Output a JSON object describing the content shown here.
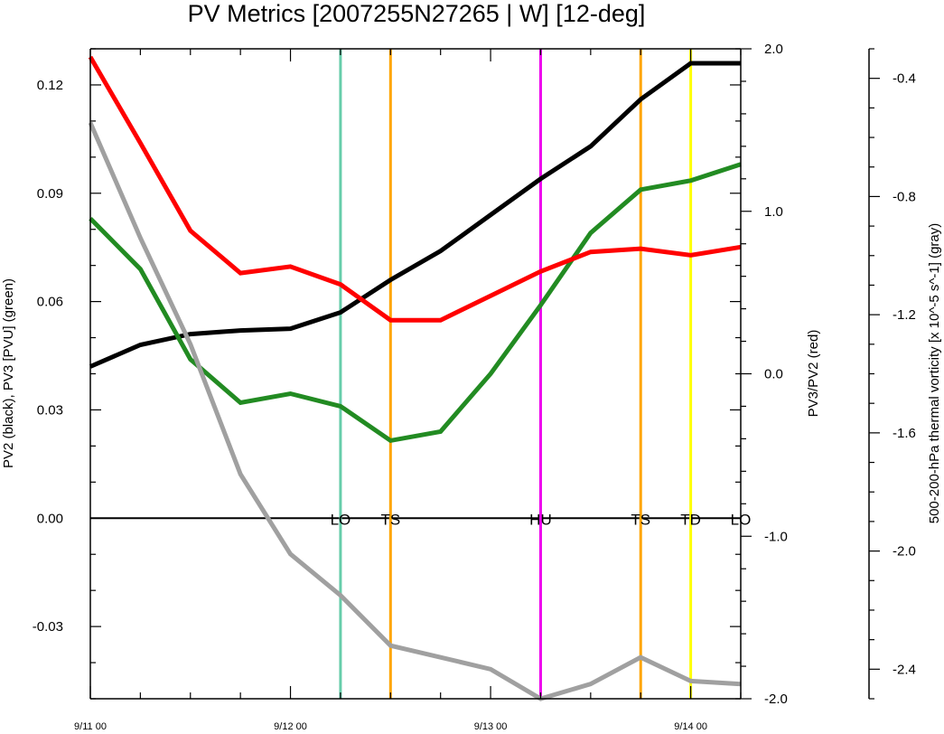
{
  "chart_data": {
    "type": "line",
    "title": "PV Metrics [2007255N27265 | W] [12-deg]",
    "x_tick_labels": [
      "9/11 00",
      "9/12 00",
      "9/13 00",
      "9/14 00"
    ],
    "x_hours": [
      0,
      6,
      12,
      18,
      24,
      30,
      36,
      42,
      48,
      54,
      60,
      66,
      72,
      78
    ],
    "axes": {
      "left": {
        "label": "PV2 (black), PV3 [PVU] (green)",
        "ylim": [
          -0.05,
          0.13
        ],
        "tick_values": [
          -0.03,
          0.0,
          0.03,
          0.06,
          0.09,
          0.12
        ],
        "tick_labels": [
          "-0.03",
          "0.00",
          "0.03",
          "0.06",
          "0.09",
          "0.12"
        ]
      },
      "right1": {
        "label": "PV3/PV2 (red)",
        "ylim": [
          -2.0,
          2.0
        ],
        "tick_values": [
          -2.0,
          -1.0,
          0.0,
          1.0,
          2.0
        ],
        "tick_labels": [
          "-2.0",
          "-1.0",
          "0.0",
          "1.0",
          "2.0"
        ]
      },
      "right2": {
        "label": "500-200-hPa thermal vorticity [x 10^-5 s^-1] (gray)",
        "ylim": [
          -2.5,
          -0.3
        ],
        "tick_values": [
          -2.4,
          -2.0,
          -1.6,
          -1.2,
          -0.8,
          -0.4
        ],
        "tick_labels": [
          "-2.4",
          "-2.0",
          "-1.6",
          "-1.2",
          "-0.8",
          "-0.4"
        ]
      }
    },
    "series": [
      {
        "name": "PV2",
        "axis": "left",
        "color": "#000000",
        "values": [
          0.042,
          0.048,
          0.051,
          0.052,
          0.0525,
          0.057,
          0.066,
          0.074,
          0.084,
          0.094,
          0.103,
          0.116,
          0.126,
          0.126
        ]
      },
      {
        "name": "PV3",
        "axis": "left",
        "color": "#228b22",
        "values": [
          0.083,
          0.069,
          0.044,
          0.032,
          0.0345,
          0.031,
          0.0215,
          0.024,
          0.04,
          0.059,
          0.079,
          0.091,
          0.0935,
          0.098
        ]
      },
      {
        "name": "PV3/PV2",
        "axis": "right1",
        "color": "#ff0000",
        "values": [
          1.95,
          1.42,
          0.88,
          0.62,
          0.66,
          0.55,
          0.33,
          0.33,
          0.48,
          0.63,
          0.75,
          0.77,
          0.73,
          0.78
        ]
      },
      {
        "name": "thermal vorticity",
        "axis": "right2",
        "color": "#a0a0a0",
        "values": [
          -0.55,
          -0.94,
          -1.3,
          -1.74,
          -2.01,
          -2.15,
          -2.32,
          -2.36,
          -2.4,
          -2.5,
          -2.45,
          -2.36,
          -2.44,
          -2.45
        ]
      }
    ],
    "vertical_markers": [
      {
        "hour": 30,
        "label": "LO",
        "color": "#66cdaa"
      },
      {
        "hour": 36,
        "label": "TS",
        "color": "#ffa500"
      },
      {
        "hour": 54,
        "label": "HU",
        "color": "#ee00ee"
      },
      {
        "hour": 66,
        "label": "TS",
        "color": "#ffa500"
      },
      {
        "hour": 72,
        "label": "TD",
        "color": "#ffff00"
      },
      {
        "hour": 78,
        "label": "LO",
        "color": null
      }
    ],
    "zero_line": true
  }
}
